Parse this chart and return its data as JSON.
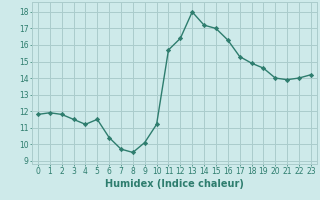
{
  "x": [
    0,
    1,
    2,
    3,
    4,
    5,
    6,
    7,
    8,
    9,
    10,
    11,
    12,
    13,
    14,
    15,
    16,
    17,
    18,
    19,
    20,
    21,
    22,
    23
  ],
  "y": [
    11.8,
    11.9,
    11.8,
    11.5,
    11.2,
    11.5,
    10.4,
    9.7,
    9.5,
    10.1,
    11.2,
    15.7,
    16.4,
    18.0,
    17.2,
    17.0,
    16.3,
    15.3,
    14.9,
    14.6,
    14.0,
    13.9,
    14.0,
    14.2
  ],
  "line_color": "#2e7d6e",
  "marker": "D",
  "marker_size": 2.2,
  "line_width": 1.0,
  "bg_color": "#ceeaea",
  "grid_color": "#aacccc",
  "xlabel": "Humidex (Indice chaleur)",
  "xlim": [
    -0.5,
    23.5
  ],
  "ylim": [
    8.8,
    18.6
  ],
  "yticks": [
    9,
    10,
    11,
    12,
    13,
    14,
    15,
    16,
    17,
    18
  ],
  "xticks": [
    0,
    1,
    2,
    3,
    4,
    5,
    6,
    7,
    8,
    9,
    10,
    11,
    12,
    13,
    14,
    15,
    16,
    17,
    18,
    19,
    20,
    21,
    22,
    23
  ],
  "tick_label_fontsize": 5.5,
  "xlabel_fontsize": 7.0
}
